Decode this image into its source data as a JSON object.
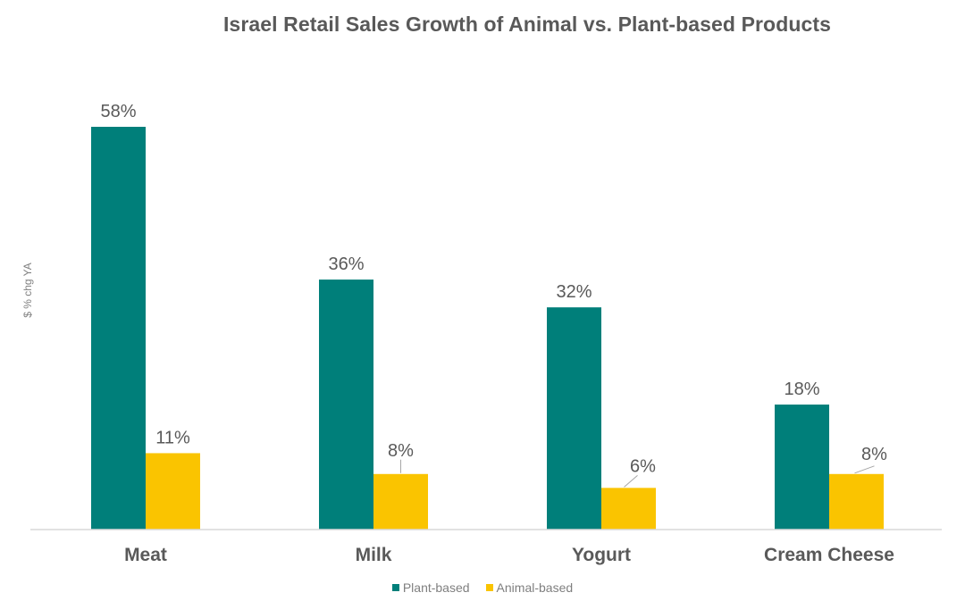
{
  "chart_data": {
    "type": "bar",
    "title": "Israel Retail Sales Growth of Animal vs. Plant-based Products",
    "xlabel": "",
    "ylabel": "$ % chg YA",
    "ylim": [
      0,
      60
    ],
    "grid": false,
    "legend_position": "bottom",
    "categories": [
      "Meat",
      "Milk",
      "Yogurt",
      "Cream Cheese"
    ],
    "series": [
      {
        "name": "Plant-based",
        "color": "#007f7a",
        "values": [
          58,
          36,
          32,
          18
        ],
        "labels": [
          "58%",
          "36%",
          "32%",
          "18%"
        ]
      },
      {
        "name": "Animal-based",
        "color": "#fac400",
        "values": [
          11,
          8,
          6,
          8
        ],
        "labels": [
          "11%",
          "8%",
          "6%",
          "8%"
        ]
      }
    ]
  },
  "colors": {
    "title": "#595959",
    "tick_label": "#595959",
    "data_label": "#595959",
    "axis_line": "#d9d9d9",
    "legend_text": "#7f7f7f"
  }
}
